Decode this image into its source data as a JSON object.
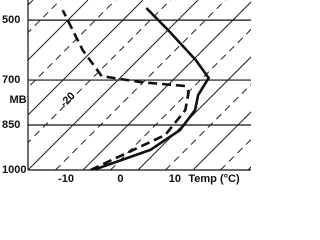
{
  "chart_data": {
    "type": "skew-t",
    "ylabel": "MB",
    "xlabel": "Temp (°C)",
    "annotation": "-20",
    "xlim": [
      -17,
      24
    ],
    "ylim": [
      1000,
      433
    ],
    "xticks": [
      -10,
      0,
      10
    ],
    "yticks": [
      500,
      700,
      850,
      1000
    ],
    "grid": true,
    "series": [
      {
        "color": "#111111",
        "dash": false,
        "x": [
          -5,
          1.8,
          3.6,
          2.7,
          0.5,
          -0.7,
          -6.4,
          -17,
          -25
        ],
        "y": [
          1000,
          933,
          867,
          800,
          750,
          693,
          633,
          533,
          460
        ]
      },
      {
        "color": "#111111",
        "dash": true,
        "x": [
          -5.5,
          1.8,
          0.9,
          -1.8,
          -3.5,
          -12.4,
          -20.7,
          -29,
          -40
        ],
        "y": [
          1000,
          883,
          800,
          740,
          720,
          707,
          687,
          600,
          467
        ]
      }
    ]
  }
}
